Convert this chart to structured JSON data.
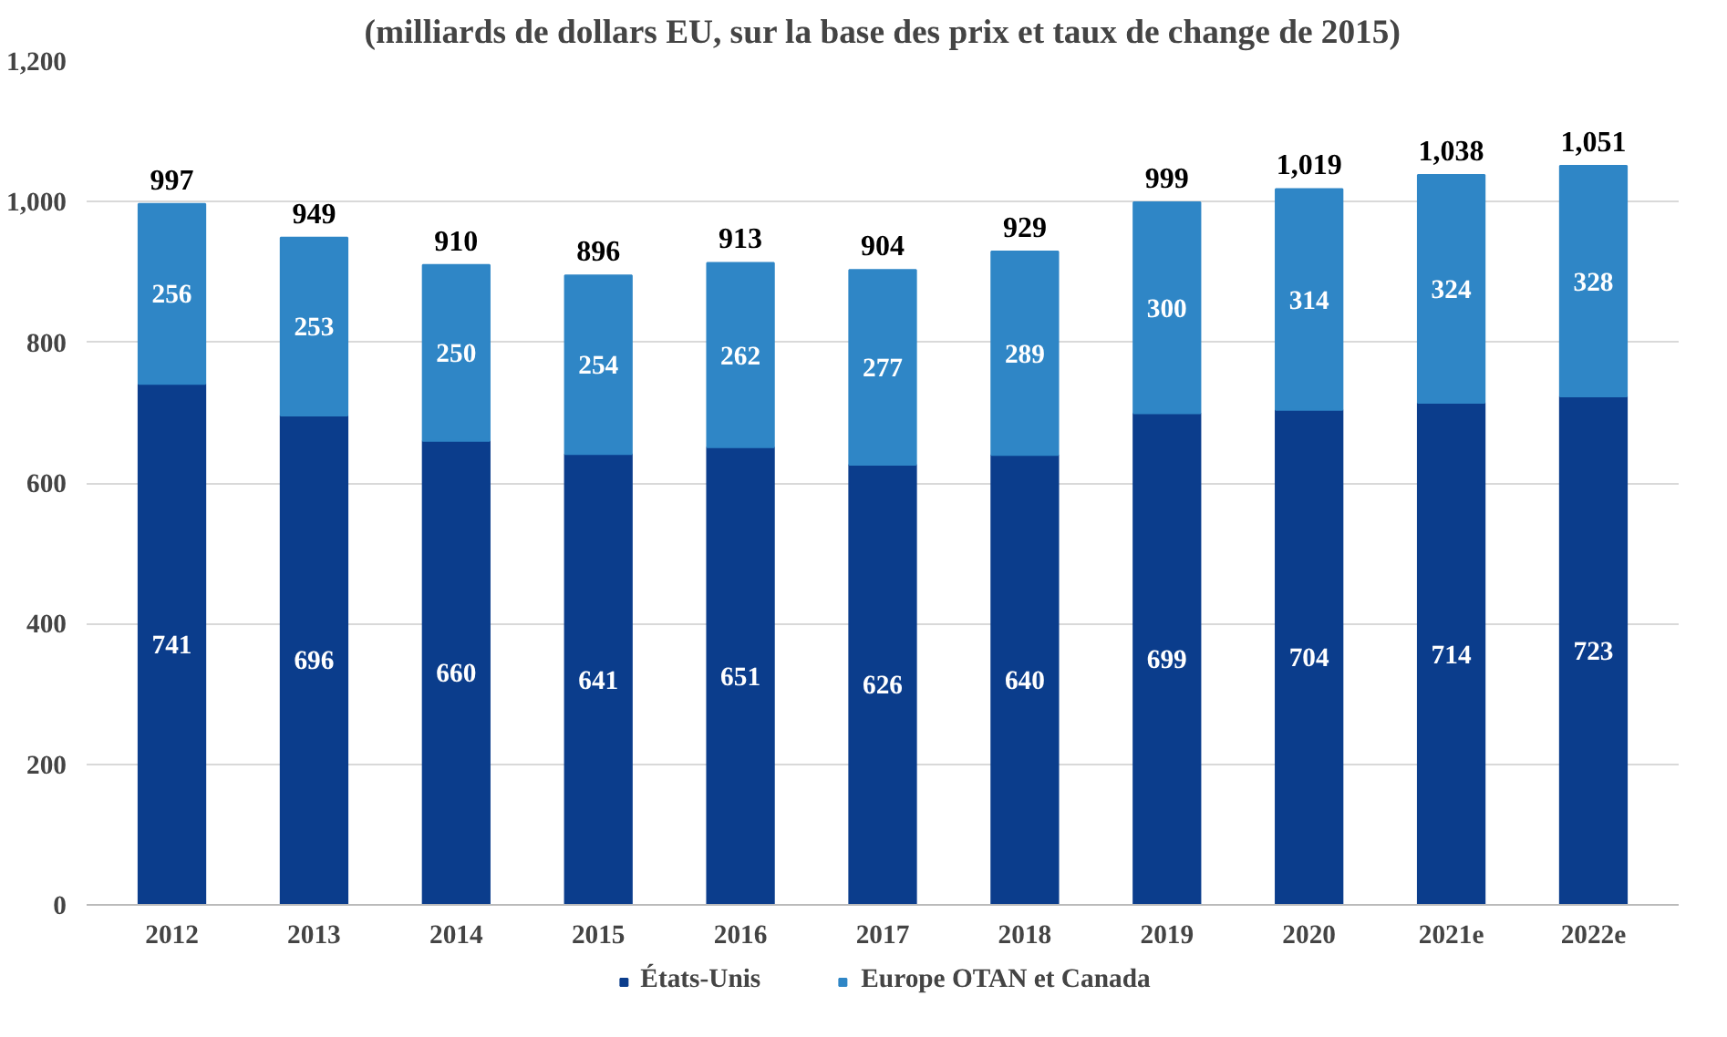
{
  "chart_data": {
    "type": "bar",
    "stacked": true,
    "title": "(milliards de dollars EU, sur la base des prix et taux de change de 2015)",
    "categories": [
      "2012",
      "2013",
      "2014",
      "2015",
      "2016",
      "2017",
      "2018",
      "2019",
      "2020",
      "2021e",
      "2022e"
    ],
    "series": [
      {
        "name": "États-Unis",
        "color": "#0b3d8c",
        "values": [
          741,
          696,
          660,
          641,
          651,
          626,
          640,
          699,
          704,
          714,
          723
        ]
      },
      {
        "name": "Europe OTAN et Canada",
        "color": "#2f86c6",
        "values": [
          256,
          253,
          250,
          254,
          262,
          277,
          289,
          300,
          314,
          324,
          328
        ]
      }
    ],
    "totals": [
      "997",
      "949",
      "910",
      "896",
      "913",
      "904",
      "929",
      "999",
      "1,019",
      "1,038",
      "1,051"
    ],
    "data_labels": true,
    "ylim": [
      0,
      1200
    ],
    "yticks": [
      0,
      200,
      400,
      600,
      800,
      {
        "value": 1000,
        "label": "1,000"
      },
      {
        "value": 1200,
        "label": "1,200"
      }
    ],
    "grid": "y",
    "legend": "bottom"
  }
}
